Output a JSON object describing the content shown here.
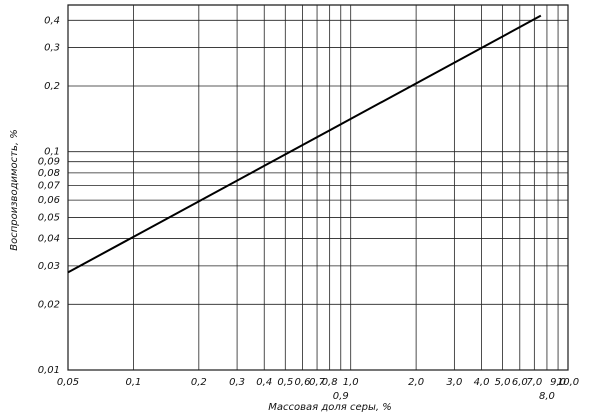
{
  "chart_data": {
    "type": "line",
    "x_label": "Массовая доля серы, %",
    "y_label": "Воспроизводимость, %",
    "x_log": true,
    "y_log": true,
    "grid": true,
    "xlim": [
      0.05,
      10.0
    ],
    "ylim": [
      0.01,
      0.47
    ],
    "xticks": [
      {
        "value": 0.05,
        "label": "0,05"
      },
      {
        "value": 0.1,
        "label": "0,1"
      },
      {
        "value": 0.2,
        "label": "0,2"
      },
      {
        "value": 0.3,
        "label": "0,3"
      },
      {
        "value": 0.4,
        "label": "0,4"
      },
      {
        "value": 0.5,
        "label": "0,5"
      },
      {
        "value": 0.6,
        "label": "0,6"
      },
      {
        "value": 0.7,
        "label": "0,7"
      },
      {
        "value": 0.8,
        "label": "0,8"
      },
      {
        "value": 0.9,
        "label": "0,9"
      },
      {
        "value": 1.0,
        "label": "1,0"
      },
      {
        "value": 2.0,
        "label": "2,0"
      },
      {
        "value": 3.0,
        "label": "3,0"
      },
      {
        "value": 4.0,
        "label": "4,0"
      },
      {
        "value": 5.0,
        "label": "5,0"
      },
      {
        "value": 6.0,
        "label": "6,0"
      },
      {
        "value": 7.0,
        "label": "7,0"
      },
      {
        "value": 8.0,
        "label": "8,0"
      },
      {
        "value": 9.0,
        "label": "9,0"
      },
      {
        "value": 10.0,
        "label": "10,0"
      }
    ],
    "yticks": [
      {
        "value": 0.01,
        "label": "0,01"
      },
      {
        "value": 0.02,
        "label": "0,02"
      },
      {
        "value": 0.03,
        "label": "0,03"
      },
      {
        "value": 0.04,
        "label": "0,04"
      },
      {
        "value": 0.05,
        "label": "0,05"
      },
      {
        "value": 0.06,
        "label": "0,06"
      },
      {
        "value": 0.07,
        "label": "0,07"
      },
      {
        "value": 0.08,
        "label": "0,08"
      },
      {
        "value": 0.09,
        "label": "0,09"
      },
      {
        "value": 0.1,
        "label": "0,1"
      },
      {
        "value": 0.2,
        "label": "0,2"
      },
      {
        "value": 0.3,
        "label": "0,3"
      },
      {
        "value": 0.4,
        "label": "0,4"
      }
    ],
    "x": [
      0.05,
      7.5
    ],
    "series": [
      {
        "color": "#000000",
        "values": [
          0.028,
          0.42
        ]
      }
    ]
  }
}
